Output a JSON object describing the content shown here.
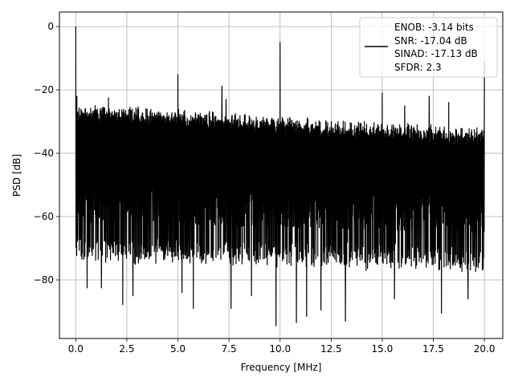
{
  "chart_data": {
    "type": "line",
    "xlabel": "Frequency [MHz]",
    "ylabel": "PSD [dB]",
    "xlim": [
      -0.8,
      20.9
    ],
    "ylim": [
      -98.5,
      4.6
    ],
    "x_ticks": [
      0.0,
      2.5,
      5.0,
      7.5,
      10.0,
      12.5,
      15.0,
      17.5,
      20.0
    ],
    "x_tick_labels": [
      "0.0",
      "2.5",
      "5.0",
      "7.5",
      "10.0",
      "12.5",
      "15.0",
      "17.5",
      "20.0"
    ],
    "y_ticks": [
      0,
      -20,
      -40,
      -60,
      -80
    ],
    "y_tick_labels": [
      "0",
      "−20",
      "−40",
      "−60",
      "−80"
    ],
    "grid": true,
    "line_color": "#000000",
    "legend": {
      "placement": "top-right",
      "entries": [
        "ENOB: -3.14 bits",
        "SNR: -17.04 dB",
        "SINAD: -17.13 dB",
        "SFDR: 2.3"
      ]
    },
    "x_range": [
      0.0,
      20.0
    ],
    "noise_floor": {
      "upper_db": [
        -28,
        -36
      ],
      "lower_db": [
        -72,
        -75
      ]
    },
    "peaks": [
      {
        "x": 0.0,
        "y": 0.0
      },
      {
        "x": 0.05,
        "y": -22.0
      },
      {
        "x": 1.6,
        "y": -22.5
      },
      {
        "x": 5.0,
        "y": -15.2
      },
      {
        "x": 7.15,
        "y": -18.8
      },
      {
        "x": 7.35,
        "y": -23.0
      },
      {
        "x": 10.0,
        "y": -5.0
      },
      {
        "x": 15.0,
        "y": -21.0
      },
      {
        "x": 16.1,
        "y": -25.0
      },
      {
        "x": 17.3,
        "y": -22.0
      },
      {
        "x": 18.25,
        "y": -24.0
      },
      {
        "x": 20.0,
        "y": -11.0
      }
    ],
    "dips": [
      {
        "x": 0.55,
        "y": -82.5
      },
      {
        "x": 1.25,
        "y": -82.5
      },
      {
        "x": 2.3,
        "y": -87.8
      },
      {
        "x": 2.8,
        "y": -85.0
      },
      {
        "x": 5.2,
        "y": -84.0
      },
      {
        "x": 5.75,
        "y": -89.0
      },
      {
        "x": 7.6,
        "y": -89.0
      },
      {
        "x": 8.6,
        "y": -85.0
      },
      {
        "x": 9.8,
        "y": -94.5
      },
      {
        "x": 10.8,
        "y": -93.5
      },
      {
        "x": 11.3,
        "y": -91.5
      },
      {
        "x": 12.0,
        "y": -89.5
      },
      {
        "x": 13.2,
        "y": -93.0
      },
      {
        "x": 15.6,
        "y": -86.0
      },
      {
        "x": 17.9,
        "y": -90.5
      },
      {
        "x": 19.2,
        "y": -86.0
      }
    ]
  }
}
